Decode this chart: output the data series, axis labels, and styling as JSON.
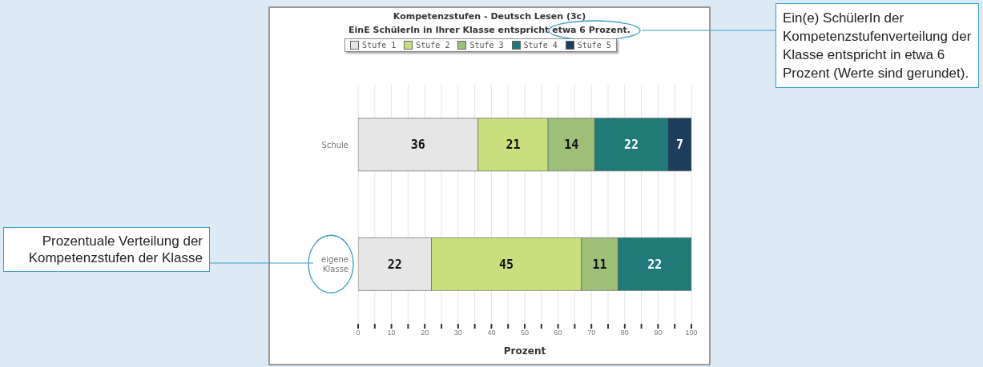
{
  "chart_data": {
    "type": "bar",
    "orientation": "horizontal",
    "stacked": true,
    "title": "Kompetenzstufen - Deutsch Lesen (3c)",
    "subtitle": "EinE SchülerIn in Ihrer Klasse entspricht etwa 6 Prozent.",
    "xlabel": "Prozent",
    "categories": [
      "Schule",
      "eigene Klasse"
    ],
    "series": [
      {
        "name": "Stufe 1",
        "color": "#e6e6e6",
        "values": [
          36,
          22
        ]
      },
      {
        "name": "Stufe 2",
        "color": "#c9df7d",
        "values": [
          21,
          45
        ]
      },
      {
        "name": "Stufe 3",
        "color": "#9dbf78",
        "values": [
          14,
          11
        ]
      },
      {
        "name": "Stufe 4",
        "color": "#1f7a78",
        "values": [
          22,
          22
        ]
      },
      {
        "name": "Stufe 5",
        "color": "#1c3d5c",
        "values": [
          7,
          null
        ]
      }
    ],
    "xlim": [
      0,
      100
    ],
    "xticks": [
      0,
      {
        "value": 5,
        "label": null
      },
      10,
      {
        "value": 15,
        "label": null
      },
      20,
      {
        "value": 25,
        "label": null
      },
      30,
      {
        "value": 35,
        "label": null
      },
      40,
      {
        "value": 45,
        "label": null
      },
      50,
      {
        "value": 55,
        "label": null
      },
      60,
      {
        "value": 65,
        "label": null
      },
      70,
      {
        "value": 75,
        "label": null
      },
      80,
      {
        "value": 85,
        "label": null
      },
      90,
      {
        "value": 95,
        "label": null
      },
      100
    ],
    "grid": "x",
    "legend": "top",
    "data_labels": true,
    "annotations": [
      "Prozentuale Verteilung der Kompetenzstufen der Klasse",
      "Ein(e) SchülerIn der Kompetenzstufenverteilung der Klasse entspricht in etwa 6 Prozent (Werte sind gerundet)."
    ]
  }
}
